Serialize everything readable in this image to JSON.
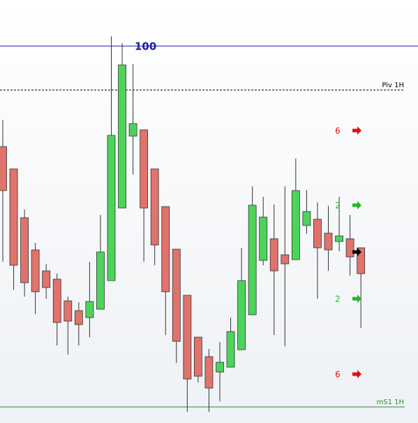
{
  "chart_data": {
    "type": "candlestick",
    "open": [
      396,
      364,
      294,
      248,
      218,
      206,
      175,
      161,
      151,
      163,
      204,
      308,
      411,
      420,
      364,
      310,
      249,
      183,
      123,
      95,
      73,
      80,
      105,
      155,
      233,
      264,
      241,
      234,
      283,
      292,
      272,
      260,
      264,
      251
    ],
    "high": [
      434,
      364,
      306,
      258,
      228,
      214,
      181,
      173,
      231,
      298,
      554,
      544,
      514,
      420,
      364,
      310,
      249,
      183,
      123,
      106,
      116,
      151,
      251,
      339,
      324,
      313,
      339,
      379,
      334,
      316,
      311,
      324,
      298,
      251
    ],
    "low": [
      231,
      191,
      181,
      156,
      178,
      111,
      98,
      111,
      123,
      163,
      204,
      308,
      356,
      231,
      226,
      126,
      86,
      16,
      58,
      16,
      31,
      80,
      105,
      155,
      226,
      126,
      110,
      234,
      271,
      178,
      218,
      246,
      211,
      136
    ],
    "close": [
      333,
      226,
      201,
      188,
      194,
      144,
      146,
      141,
      174,
      245,
      412,
      513,
      429,
      308,
      255,
      188,
      117,
      63,
      67,
      50,
      87,
      131,
      204,
      312,
      295,
      218,
      228,
      333,
      303,
      251,
      248,
      268,
      238,
      214
    ],
    "up_color": "#4cd45a",
    "down_color": "#e0736b",
    "ylim": [
      0,
      606
    ],
    "levels": [
      {
        "label": "100",
        "value": 540,
        "color": "#1a1aa6",
        "style": "solid"
      },
      {
        "label": "Piv 1H",
        "value": 477,
        "color": "#000000",
        "style": "dashed"
      },
      {
        "label": "mS1 1H",
        "value": 23,
        "color": "#2e8b2e",
        "style": "solid"
      }
    ],
    "markers": [
      {
        "label": "6",
        "value": 419,
        "color": "#dd1111"
      },
      {
        "label": "2",
        "value": 312,
        "color": "#22bb22"
      },
      {
        "value": 245,
        "color": "#000000"
      },
      {
        "label": "2",
        "value": 178,
        "color": "#22bb22"
      },
      {
        "label": "6",
        "value": 70,
        "color": "#dd1111"
      }
    ]
  }
}
